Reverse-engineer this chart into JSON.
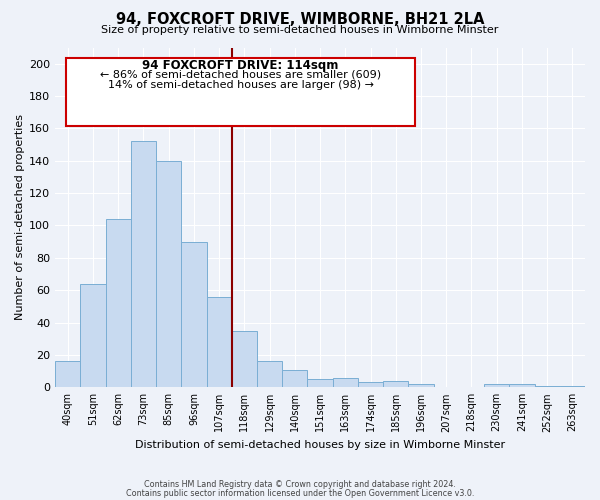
{
  "title": "94, FOXCROFT DRIVE, WIMBORNE, BH21 2LA",
  "subtitle": "Size of property relative to semi-detached houses in Wimborne Minster",
  "xlabel": "Distribution of semi-detached houses by size in Wimborne Minster",
  "ylabel": "Number of semi-detached properties",
  "footer_line1": "Contains HM Land Registry data © Crown copyright and database right 2024.",
  "footer_line2": "Contains public sector information licensed under the Open Government Licence v3.0.",
  "annotation_title": "94 FOXCROFT DRIVE: 114sqm",
  "annotation_line1": "← 86% of semi-detached houses are smaller (609)",
  "annotation_line2": "14% of semi-detached houses are larger (98) →",
  "bar_labels": [
    "40sqm",
    "51sqm",
    "62sqm",
    "73sqm",
    "85sqm",
    "96sqm",
    "107sqm",
    "118sqm",
    "129sqm",
    "140sqm",
    "151sqm",
    "163sqm",
    "174sqm",
    "185sqm",
    "196sqm",
    "207sqm",
    "218sqm",
    "230sqm",
    "241sqm",
    "252sqm",
    "263sqm"
  ],
  "bar_values": [
    16,
    64,
    104,
    152,
    140,
    90,
    56,
    35,
    16,
    11,
    5,
    6,
    3,
    4,
    2,
    0,
    0,
    2,
    2,
    1,
    1
  ],
  "bar_color": "#c8daf0",
  "bar_edgecolor": "#7aaed4",
  "vline_color": "#8b0000",
  "ylim": [
    0,
    210
  ],
  "yticks": [
    0,
    20,
    40,
    60,
    80,
    100,
    120,
    140,
    160,
    180,
    200
  ],
  "bg_color": "#eef2f9",
  "grid_color": "#ffffff",
  "annotation_box_edgecolor": "#cc0000",
  "annotation_box_facecolor": "#ffffff"
}
